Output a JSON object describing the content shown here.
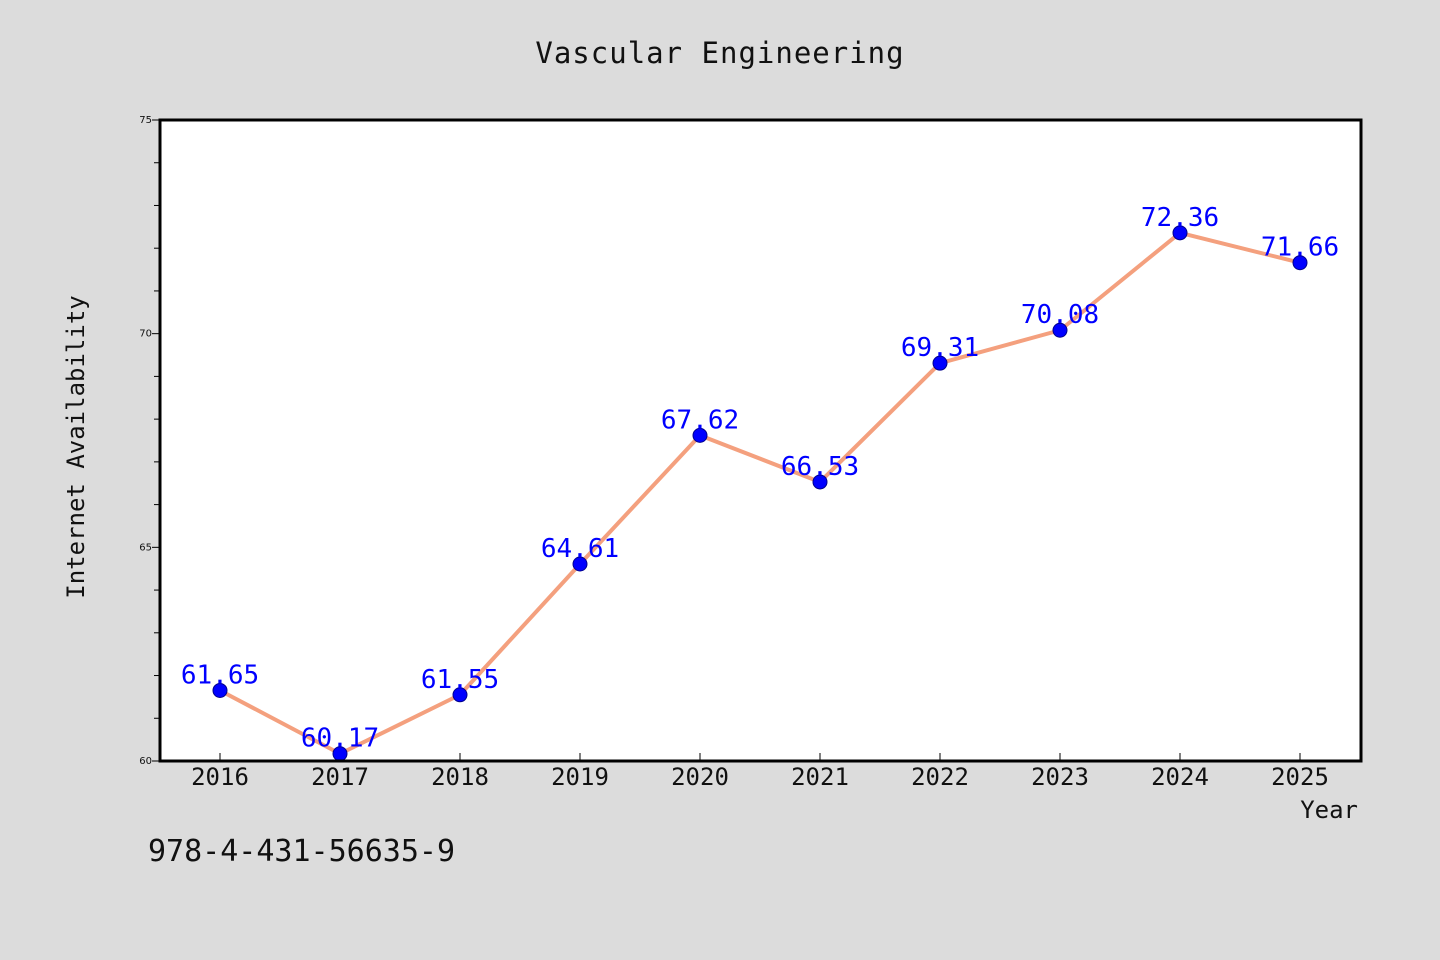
{
  "chart_data": {
    "type": "line",
    "title": "Vascular Engineering",
    "xlabel": "Year",
    "ylabel": "Internet Availability",
    "categories": [
      "2016",
      "2017",
      "2018",
      "2019",
      "2020",
      "2021",
      "2022",
      "2023",
      "2024",
      "2025"
    ],
    "series": [
      {
        "values": [
          61.65,
          60.17,
          61.55,
          64.61,
          67.62,
          66.53,
          69.31,
          70.08,
          72.36,
          71.66
        ],
        "labels": [
          "61.65",
          "60.17",
          "61.55",
          "64.61",
          "67.62",
          "66.53",
          "69.31",
          "70.08",
          "72.36",
          "71.66"
        ],
        "line_color": "#f4a07e",
        "marker_color": "#0000ff"
      }
    ],
    "ylim": [
      60,
      75
    ],
    "yticks": [
      "60",
      "65",
      "70",
      "75"
    ],
    "grid": false,
    "legend": "none"
  },
  "footer": {
    "code": "978-4-431-56635-9"
  },
  "colors": {
    "background": "#dcdcdc",
    "plot_area": "#ffffff",
    "label_text": "#0000ff"
  }
}
